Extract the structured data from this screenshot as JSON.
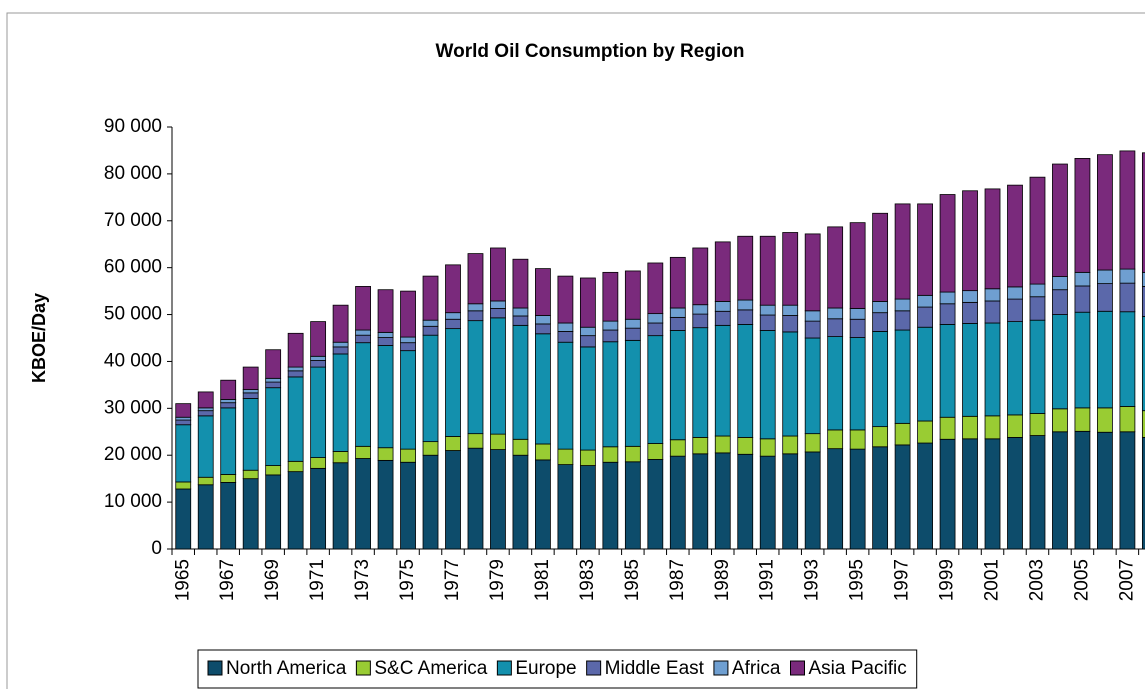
{
  "chart_data": {
    "type": "stacked_bar",
    "title": "World Oil Consumption by Region",
    "ylabel": "KBOE/Day",
    "categories": [
      "1965",
      null,
      "1967",
      null,
      "1969",
      null,
      "1971",
      null,
      "1973",
      null,
      "1975",
      null,
      "1977",
      null,
      "1979",
      null,
      "1981",
      null,
      "1983",
      null,
      "1985",
      null,
      "1987",
      null,
      "1989",
      null,
      "1991",
      null,
      "1993",
      null,
      "1995",
      null,
      "1997",
      null,
      "1999",
      null,
      "2001",
      null,
      "2003",
      null,
      "2005",
      null,
      "2007",
      null
    ],
    "series": [
      {
        "name": "North America",
        "color": "#0d4c6b",
        "values": [
          12800,
          13700,
          14200,
          15000,
          15800,
          16500,
          17200,
          18400,
          19300,
          18900,
          18500,
          20000,
          21000,
          21500,
          21200,
          20000,
          19000,
          18000,
          17800,
          18500,
          18600,
          19100,
          19800,
          20300,
          20500,
          20200,
          19800,
          20300,
          20700,
          21400,
          21300,
          21800,
          22200,
          22600,
          23400,
          23500,
          23500,
          23800,
          24200,
          25000,
          25100,
          24900,
          25000,
          23800
        ]
      },
      {
        "name": "S&C America",
        "color": "#99cc33",
        "values": [
          1500,
          1600,
          1700,
          1800,
          2000,
          2200,
          2300,
          2400,
          2600,
          2700,
          2800,
          2900,
          3000,
          3100,
          3300,
          3400,
          3400,
          3300,
          3300,
          3300,
          3300,
          3400,
          3500,
          3500,
          3600,
          3600,
          3700,
          3800,
          3900,
          4000,
          4100,
          4300,
          4600,
          4700,
          4700,
          4800,
          4900,
          4800,
          4700,
          4900,
          5000,
          5200,
          5400,
          5700
        ]
      },
      {
        "name": "Europe",
        "color": "#1390ad",
        "values": [
          12200,
          13100,
          14200,
          15300,
          16600,
          18000,
          19300,
          20800,
          22100,
          21800,
          21000,
          22700,
          23000,
          24100,
          24800,
          24300,
          23500,
          22800,
          22000,
          22400,
          22600,
          23000,
          23300,
          23400,
          23600,
          24100,
          23100,
          22200,
          20400,
          19900,
          19700,
          20300,
          19900,
          20000,
          19800,
          19800,
          19800,
          19900,
          19900,
          20100,
          20400,
          20600,
          20200,
          20100
        ]
      },
      {
        "name": "Middle East",
        "color": "#5b68aa",
        "values": [
          1000,
          1100,
          1100,
          1200,
          1200,
          1300,
          1400,
          1500,
          1600,
          1700,
          1700,
          1900,
          2000,
          2100,
          2000,
          2000,
          2100,
          2300,
          2400,
          2500,
          2600,
          2700,
          2800,
          2900,
          3000,
          3100,
          3300,
          3500,
          3600,
          3800,
          3900,
          4000,
          4100,
          4300,
          4400,
          4500,
          4700,
          4800,
          5000,
          5300,
          5600,
          5900,
          6100,
          6400
        ]
      },
      {
        "name": "Africa",
        "color": "#6f9fd1",
        "values": [
          600,
          600,
          700,
          700,
          800,
          800,
          900,
          1000,
          1100,
          1100,
          1200,
          1300,
          1400,
          1500,
          1600,
          1700,
          1800,
          1800,
          1800,
          1900,
          1900,
          2000,
          2000,
          2000,
          2100,
          2100,
          2100,
          2200,
          2200,
          2300,
          2300,
          2400,
          2500,
          2500,
          2500,
          2500,
          2600,
          2600,
          2700,
          2800,
          2900,
          2900,
          3000,
          3000
        ]
      },
      {
        "name": "Asia Pacific",
        "color": "#7a2a7c",
        "values": [
          2900,
          3400,
          4100,
          4800,
          6100,
          7200,
          7400,
          7900,
          9300,
          9100,
          9800,
          9400,
          10200,
          10700,
          11300,
          10400,
          10000,
          10000,
          10500,
          10400,
          10300,
          10800,
          10800,
          12100,
          12700,
          13600,
          14700,
          15500,
          16400,
          17300,
          18300,
          18800,
          20300,
          19500,
          20800,
          21300,
          21300,
          21700,
          22800,
          24000,
          24300,
          24600,
          25200,
          25500
        ]
      }
    ],
    "ylim": [
      0,
      90000
    ],
    "yticks": [
      0,
      {
        "value": 10000,
        "label": "10 000"
      },
      {
        "value": 20000,
        "label": "20 000"
      },
      {
        "value": 30000,
        "label": "30 000"
      },
      {
        "value": 40000,
        "label": "40 000"
      },
      {
        "value": 50000,
        "label": "50 000"
      },
      {
        "value": 60000,
        "label": "60 000"
      },
      {
        "value": 70000,
        "label": "70 000"
      },
      {
        "value": 80000,
        "label": "80 000"
      },
      {
        "value": 90000,
        "label": "90 000"
      }
    ],
    "legend": "bottom"
  }
}
